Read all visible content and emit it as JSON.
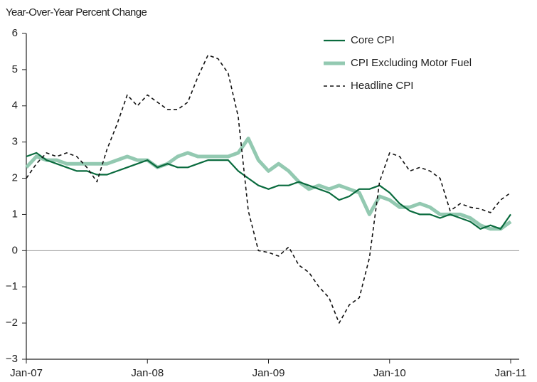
{
  "chart_data": {
    "type": "line",
    "ylabel": "Year-Over-Year Percent Change",
    "categories": [
      "Jan-07",
      null,
      null,
      null,
      null,
      null,
      null,
      null,
      null,
      null,
      null,
      null,
      "Jan-08",
      null,
      null,
      null,
      null,
      null,
      null,
      null,
      null,
      null,
      null,
      null,
      "Jan-09",
      null,
      null,
      null,
      null,
      null,
      null,
      null,
      null,
      null,
      null,
      null,
      "Jan-10",
      null,
      null,
      null,
      null,
      null,
      null,
      null,
      null,
      null,
      null,
      null,
      "Jan-11"
    ],
    "series": [
      {
        "name": "Core CPI",
        "color": "#0a6b3e",
        "width": 2.2,
        "dashed": false,
        "values": [
          2.6,
          2.7,
          2.5,
          2.4,
          2.3,
          2.2,
          2.2,
          2.1,
          2.1,
          2.2,
          2.3,
          2.4,
          2.5,
          2.3,
          2.4,
          2.3,
          2.3,
          2.4,
          2.5,
          2.5,
          2.5,
          2.2,
          2.0,
          1.8,
          1.7,
          1.8,
          1.8,
          1.9,
          1.8,
          1.7,
          1.6,
          1.4,
          1.5,
          1.7,
          1.7,
          1.8,
          1.6,
          1.3,
          1.1,
          1.0,
          1.0,
          0.9,
          1.0,
          0.9,
          0.8,
          0.6,
          0.7,
          0.6,
          1.0
        ]
      },
      {
        "name": "CPI Excluding Motor Fuel",
        "color": "#93c9b1",
        "width": 5,
        "dashed": false,
        "values": [
          2.3,
          2.6,
          2.5,
          2.5,
          2.4,
          2.4,
          2.4,
          2.4,
          2.4,
          2.5,
          2.6,
          2.5,
          2.5,
          2.3,
          2.4,
          2.6,
          2.7,
          2.6,
          2.6,
          2.6,
          2.6,
          2.7,
          3.1,
          2.5,
          2.2,
          2.4,
          2.2,
          1.9,
          1.7,
          1.8,
          1.7,
          1.8,
          1.7,
          1.6,
          1.0,
          1.5,
          1.4,
          1.2,
          1.2,
          1.3,
          1.2,
          1.0,
          1.0,
          1.0,
          0.9,
          0.7,
          0.6,
          0.6,
          0.8
        ]
      },
      {
        "name": "Headline CPI",
        "color": "#111111",
        "width": 1.6,
        "dashed": true,
        "values": [
          2.0,
          2.4,
          2.7,
          2.6,
          2.7,
          2.6,
          2.3,
          1.9,
          2.8,
          3.5,
          4.3,
          4.0,
          4.3,
          4.1,
          3.9,
          3.9,
          4.1,
          4.8,
          5.4,
          5.3,
          4.9,
          3.7,
          1.1,
          0.0,
          -0.05,
          -0.15,
          0.1,
          -0.4,
          -0.6,
          -1.0,
          -1.3,
          -2.0,
          -1.5,
          -1.3,
          -0.2,
          1.9,
          2.7,
          2.6,
          2.2,
          2.3,
          2.2,
          2.0,
          1.1,
          1.3,
          1.2,
          1.15,
          1.05,
          1.4,
          1.6
        ]
      }
    ],
    "ylim": [
      -3,
      6
    ],
    "yticks": [
      {
        "value": -3,
        "label": "−3"
      },
      {
        "value": -2,
        "label": "−2"
      },
      {
        "value": -1,
        "label": "−1"
      },
      0,
      1,
      2,
      3,
      4,
      5,
      6
    ],
    "zero_line": true,
    "grid": false,
    "legend": "top-right"
  }
}
